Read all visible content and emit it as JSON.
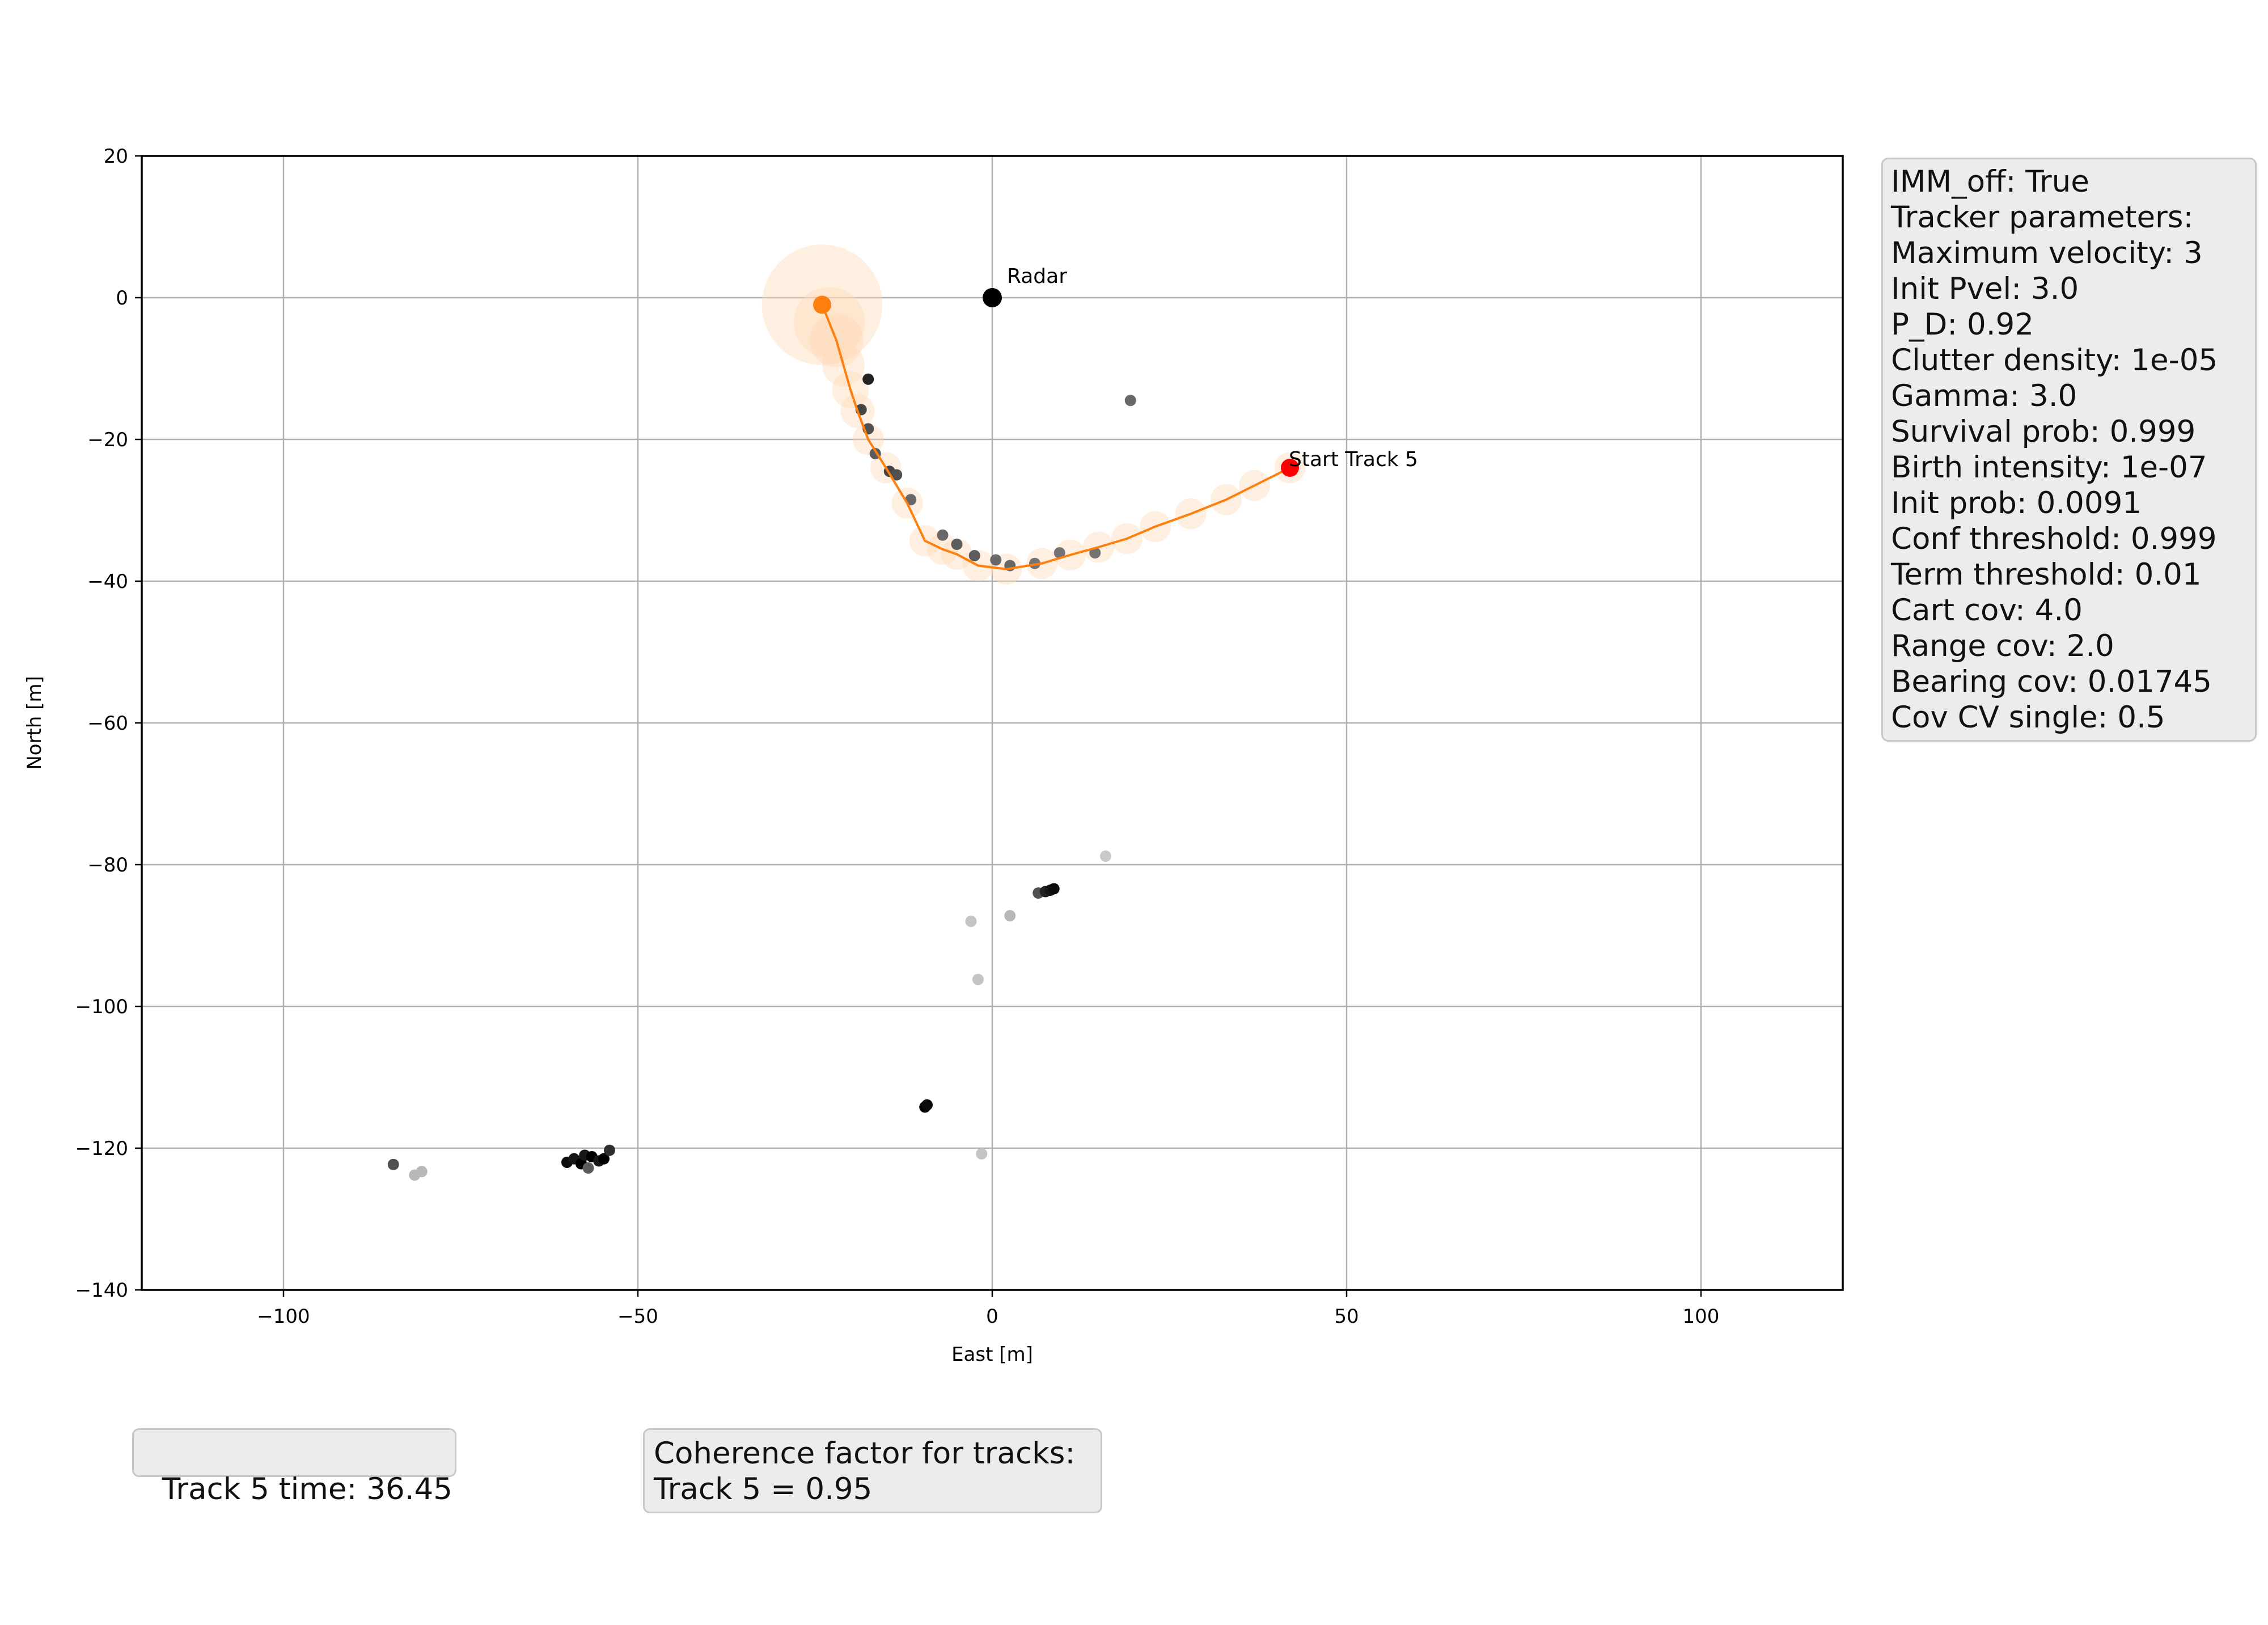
{
  "chart_data": {
    "type": "scatter",
    "xlabel": "East [m]",
    "ylabel": "North [m]",
    "xlim": [
      -120,
      120
    ],
    "ylim": [
      -140,
      20
    ],
    "xticks": [
      -100,
      -50,
      0,
      50,
      100
    ],
    "yticks": [
      20,
      0,
      -20,
      -40,
      -60,
      -80,
      -100,
      -120,
      -140
    ],
    "xtick_labels": [
      "−100",
      "−50",
      "0",
      "50",
      "100"
    ],
    "ytick_labels": [
      "20",
      "0",
      "−20",
      "−40",
      "−60",
      "−80",
      "−100",
      "−120",
      "−140"
    ],
    "grid": true,
    "radar": {
      "label": "Radar",
      "x": 0,
      "y": 0,
      "color": "#000000"
    },
    "track": {
      "label": "Start Track 5",
      "color": "#ff7f0e",
      "start_color": "#ff0000",
      "start": [
        42,
        -24
      ],
      "end": [
        -24,
        -1
      ],
      "x": [
        42,
        37,
        33,
        28,
        23,
        19,
        15,
        11,
        7,
        2,
        -2,
        -5,
        -7,
        -9.5,
        -12,
        -15,
        -17.5,
        -19,
        -20,
        -21,
        -22,
        -23,
        -24
      ],
      "y": [
        -24,
        -26.5,
        -28.5,
        -30.5,
        -32.3,
        -34,
        -35.2,
        -36.3,
        -37.5,
        -38.3,
        -37.8,
        -36.2,
        -35.5,
        -34.3,
        -29,
        -24,
        -20,
        -16,
        -13,
        -9.5,
        -6,
        -3.5,
        -1
      ],
      "cov_radius": [
        2.2,
        2.2,
        2.2,
        2.2,
        2.2,
        2.2,
        2.2,
        2.2,
        2.2,
        2.2,
        2.2,
        2.2,
        2.2,
        2.2,
        2.2,
        2.2,
        2.2,
        2.4,
        2.6,
        3,
        3.8,
        5,
        8.5
      ]
    },
    "measurements": [
      {
        "x": -17.5,
        "y": -11.5,
        "shade": 0.15
      },
      {
        "x": -18.5,
        "y": -15.8,
        "shade": 0.3
      },
      {
        "x": -17.5,
        "y": -18.5,
        "shade": 0.35
      },
      {
        "x": -16.5,
        "y": -22,
        "shade": 0.4
      },
      {
        "x": -14.5,
        "y": -24.5,
        "shade": 0.3
      },
      {
        "x": -13.5,
        "y": -25,
        "shade": 0.35
      },
      {
        "x": -11.5,
        "y": -28.5,
        "shade": 0.45
      },
      {
        "x": -7,
        "y": -33.5,
        "shade": 0.45
      },
      {
        "x": -5,
        "y": -34.8,
        "shade": 0.4
      },
      {
        "x": -2.5,
        "y": -36.4,
        "shade": 0.4
      },
      {
        "x": 0.5,
        "y": -37,
        "shade": 0.45
      },
      {
        "x": 2.5,
        "y": -37.8,
        "shade": 0.45
      },
      {
        "x": 6,
        "y": -37.5,
        "shade": 0.5
      },
      {
        "x": 9.5,
        "y": -36,
        "shade": 0.5
      },
      {
        "x": 14.5,
        "y": -36,
        "shade": 0.5
      },
      {
        "x": 19.5,
        "y": -14.5,
        "shade": 0.45
      },
      {
        "x": 16,
        "y": -78.8,
        "shade": 0.88
      },
      {
        "x": -3,
        "y": -88,
        "shade": 0.85
      },
      {
        "x": 2.5,
        "y": -87.2,
        "shade": 0.8
      },
      {
        "x": -2,
        "y": -96.2,
        "shade": 0.85
      },
      {
        "x": 6.5,
        "y": -84,
        "shade": 0.35
      },
      {
        "x": 7.5,
        "y": -83.8,
        "shade": 0.15
      },
      {
        "x": 8.2,
        "y": -83.6,
        "shade": 0.1
      },
      {
        "x": 8.7,
        "y": -83.4,
        "shade": 0.05
      },
      {
        "x": -9.5,
        "y": -114.2,
        "shade": 0.0
      },
      {
        "x": -9.2,
        "y": -113.9,
        "shade": 0.05
      },
      {
        "x": -1.5,
        "y": -120.8,
        "shade": 0.85
      },
      {
        "x": -84.5,
        "y": -122.3,
        "shade": 0.35
      },
      {
        "x": -81.5,
        "y": -123.8,
        "shade": 0.8
      },
      {
        "x": -80.5,
        "y": -123.3,
        "shade": 0.8
      },
      {
        "x": -60,
        "y": -122,
        "shade": 0.05
      },
      {
        "x": -59,
        "y": -121.5,
        "shade": 0.1
      },
      {
        "x": -58,
        "y": -122.2,
        "shade": 0.0
      },
      {
        "x": -57.5,
        "y": -121,
        "shade": 0.1
      },
      {
        "x": -57,
        "y": -122.8,
        "shade": 0.4
      },
      {
        "x": -56.5,
        "y": -121.2,
        "shade": 0.0
      },
      {
        "x": -55.5,
        "y": -121.8,
        "shade": 0.1
      },
      {
        "x": -54.8,
        "y": -121.5,
        "shade": 0.0
      },
      {
        "x": -54,
        "y": -120.3,
        "shade": 0.2
      }
    ]
  },
  "tracker_info": {
    "lines": [
      "IMM_off: True",
      "Tracker parameters:",
      "Maximum velocity: 3",
      "Init Pvel: 3.0",
      "P_D: 0.92",
      "Clutter density: 1e-05",
      "Gamma: 3.0",
      "Survival prob: 0.999",
      "Birth intensity: 1e-07",
      "Init prob: 0.0091",
      "Conf threshold: 0.999",
      "Term threshold: 0.01",
      "Cart cov: 4.0",
      "Range cov: 2.0",
      "Bearing cov: 0.01745",
      "Cov CV single: 0.5"
    ]
  },
  "track_time": "Track 5 time: 36.45",
  "coherence": {
    "title": "Coherence factor for tracks:",
    "value": "Track 5 = 0.95"
  }
}
